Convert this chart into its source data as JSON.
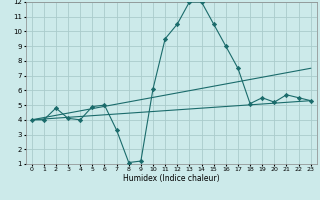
{
  "xlabel": "Humidex (Indice chaleur)",
  "background_color": "#cceaea",
  "grid_color": "#aacccc",
  "line_color": "#1a6b6b",
  "xlim": [
    -0.5,
    23.5
  ],
  "ylim": [
    1,
    12
  ],
  "xticks": [
    0,
    1,
    2,
    3,
    4,
    5,
    6,
    7,
    8,
    9,
    10,
    11,
    12,
    13,
    14,
    15,
    16,
    17,
    18,
    19,
    20,
    21,
    22,
    23
  ],
  "yticks": [
    1,
    2,
    3,
    4,
    5,
    6,
    7,
    8,
    9,
    10,
    11,
    12
  ],
  "series1_x": [
    0,
    1,
    2,
    3,
    4,
    5,
    6,
    7,
    8,
    9,
    10,
    11,
    12,
    13,
    14,
    15,
    16,
    17,
    18,
    19,
    20,
    21,
    22,
    23
  ],
  "series1_y": [
    4.0,
    4.0,
    4.8,
    4.1,
    4.0,
    4.9,
    5.0,
    3.3,
    1.1,
    1.2,
    6.1,
    9.5,
    10.5,
    12.0,
    12.0,
    10.5,
    9.0,
    7.5,
    5.1,
    5.5,
    5.2,
    5.7,
    5.5,
    5.3
  ],
  "series2_x": [
    0,
    23
  ],
  "series2_y": [
    4.0,
    5.3
  ],
  "series3_x": [
    0,
    23
  ],
  "series3_y": [
    4.0,
    7.5
  ],
  "marker": "D",
  "marker_size": 2.2,
  "line_width": 0.8
}
